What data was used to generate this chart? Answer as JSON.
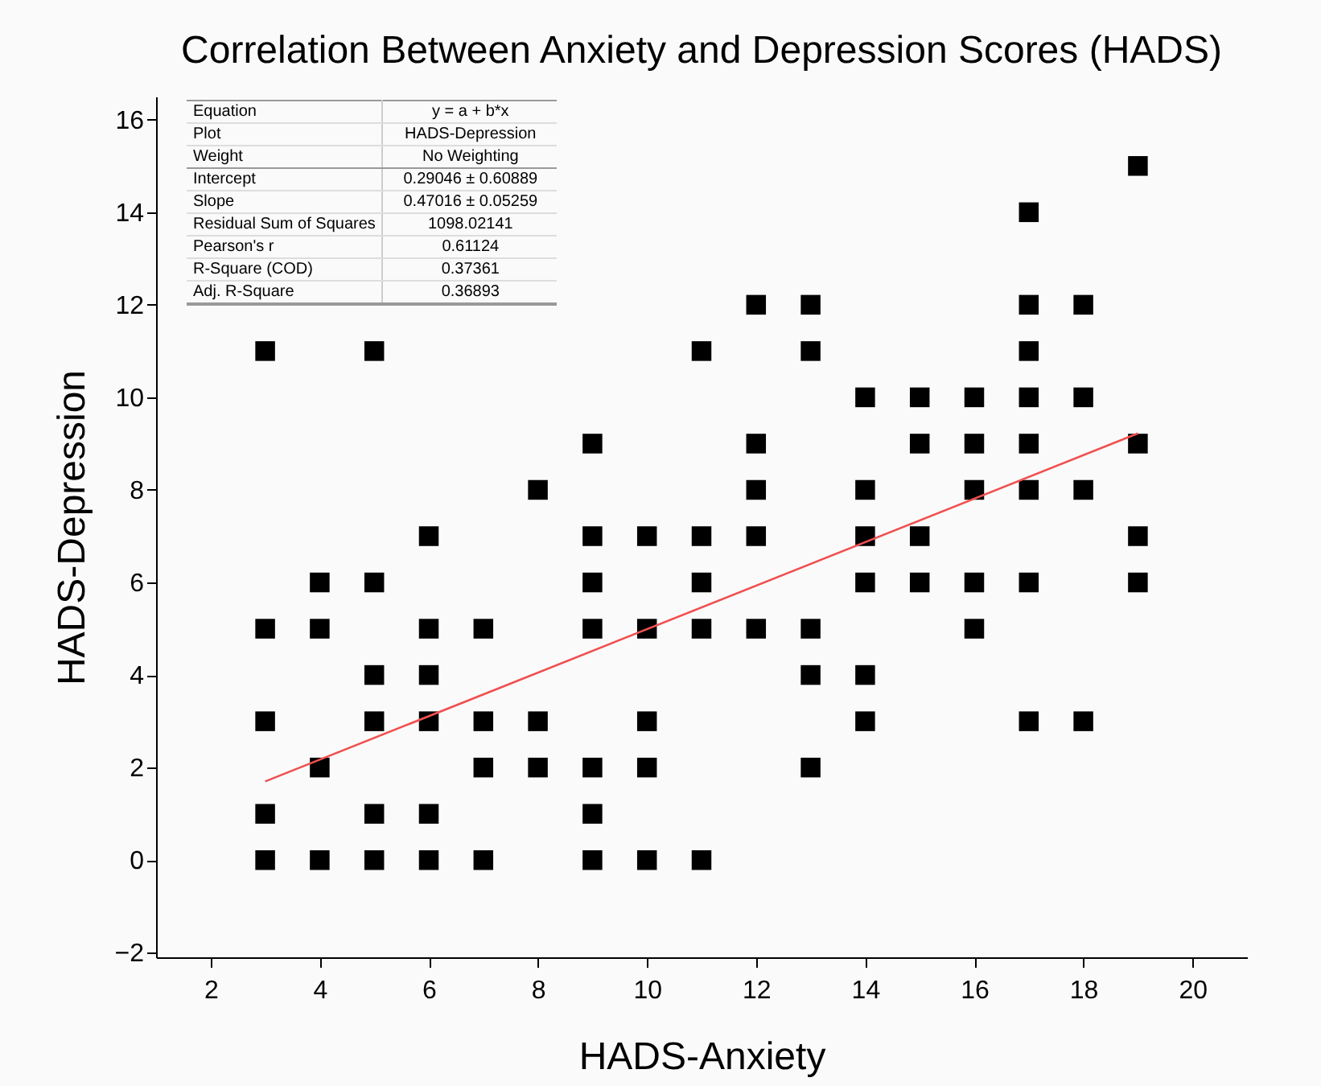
{
  "chart_data": {
    "type": "scatter",
    "title": "Correlation Between Anxiety and Depression Scores (HADS)",
    "xlabel": "HADS-Anxiety",
    "ylabel": "HADS-Depression",
    "xlim": [
      1,
      21
    ],
    "xticks": [
      2,
      4,
      6,
      8,
      10,
      12,
      14,
      16,
      18,
      20
    ],
    "ylim": [
      -2.1,
      16.5
    ],
    "yticks": [
      -2,
      0,
      2,
      4,
      6,
      8,
      10,
      12,
      14,
      16
    ],
    "grid": false,
    "marker": "square",
    "annotations": [
      "Equation",
      "y = a + b*x",
      "Plot",
      "HADS-Depression",
      "Weight",
      "No Weighting",
      "Intercept",
      "0.29046 ± 0.60889",
      "Slope",
      "0.47016 ± 0.05259",
      "Residual Sum of Squares",
      "1098.02141",
      "Pearson's r",
      "0.61124",
      "R-Square (COD)",
      "0.37361",
      "Adj. R-Square",
      "0.36893"
    ],
    "series": [
      {
        "color": "#000000",
        "x": [
          3,
          3,
          3,
          3,
          3,
          4,
          4,
          4,
          4,
          5,
          5,
          5,
          5,
          5,
          5,
          6,
          6,
          6,
          6,
          6,
          6,
          7,
          7,
          7,
          7,
          8,
          8,
          8,
          9,
          9,
          9,
          9,
          9,
          9,
          9,
          10,
          10,
          10,
          10,
          10,
          11,
          11,
          11,
          11,
          11,
          12,
          12,
          12,
          12,
          12,
          13,
          13,
          13,
          13,
          13,
          14,
          14,
          14,
          14,
          14,
          14,
          15,
          15,
          15,
          15,
          16,
          16,
          16,
          16,
          16,
          17,
          17,
          17,
          17,
          17,
          17,
          17,
          17,
          18,
          18,
          18,
          18,
          19,
          19,
          19,
          19
        ],
        "values": [
          11,
          5,
          3,
          1,
          0,
          6,
          5,
          2,
          0,
          11,
          6,
          4,
          3,
          1,
          0,
          7,
          5,
          4,
          3,
          1,
          0,
          5,
          3,
          2,
          0,
          8,
          3,
          2,
          9,
          7,
          6,
          5,
          2,
          1,
          0,
          7,
          5,
          3,
          2,
          0,
          11,
          7,
          6,
          5,
          0,
          12,
          9,
          8,
          7,
          5,
          12,
          11,
          5,
          4,
          2,
          10,
          8,
          7,
          6,
          4,
          3,
          10,
          9,
          7,
          6,
          10,
          9,
          8,
          6,
          5,
          14,
          12,
          11,
          10,
          9,
          8,
          6,
          3,
          12,
          10,
          8,
          3,
          15,
          9,
          7,
          6
        ]
      },
      {
        "type": "line",
        "color": "#f05050",
        "x": [
          3,
          19
        ],
        "values": [
          1.7,
          9.22
        ],
        "marker": "none",
        "line_style": "solid"
      }
    ]
  }
}
